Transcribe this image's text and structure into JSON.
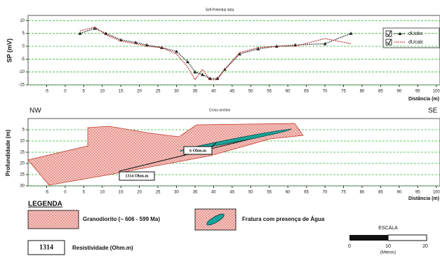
{
  "chart_data": [
    {
      "type": "line",
      "title": "Self-Potential data",
      "y_label": "SP (mV)",
      "x_label": "Distância (m)",
      "x": [
        4,
        8,
        11,
        15,
        19,
        22,
        26,
        30,
        33,
        35,
        37,
        39,
        41,
        43,
        47,
        52,
        57,
        62,
        70,
        77
      ],
      "series": [
        {
          "name": "dUobs",
          "color": "#222222",
          "marker": "triangle",
          "values": [
            5,
            7,
            5,
            2.5,
            1.5,
            0.5,
            -0.5,
            -2,
            -6,
            -10,
            -11,
            -12.5,
            -12.5,
            -9,
            -3,
            -1,
            0,
            0.5,
            1,
            5
          ]
        },
        {
          "name": "dUcalc",
          "color": "#b22222",
          "values": [
            6,
            7.5,
            4.5,
            2,
            1,
            0,
            -0.5,
            -3,
            -8,
            -13,
            -9,
            -13,
            -13,
            -9,
            -2.5,
            -0.5,
            0,
            0,
            3,
            1
          ]
        }
      ],
      "xlim": [
        -10,
        101
      ],
      "xticks": [
        -5,
        0,
        5,
        10,
        15,
        20,
        25,
        30,
        35,
        40,
        45,
        50,
        55,
        60,
        65,
        70,
        75,
        80,
        85,
        90,
        95,
        100
      ],
      "ylim": [
        -15,
        12
      ],
      "yticks": [
        10,
        5,
        0,
        -5,
        -10,
        -15
      ],
      "grid": true
    },
    {
      "type": "section",
      "title": "Cross-section",
      "left_label": "NW",
      "right_label": "SE",
      "y_label": "Profundidade (m)",
      "x_label": "Distância (m)",
      "annotations": [
        "1314 Ohm.m",
        "6 Ohm.m"
      ],
      "xlim": [
        -10,
        101
      ],
      "xticks": [
        -5,
        0,
        5,
        10,
        15,
        20,
        25,
        30,
        35,
        40,
        45,
        50,
        55,
        60,
        65,
        70,
        75,
        80,
        85,
        90,
        95,
        100
      ],
      "ylim": [
        30,
        0
      ],
      "yticks": [
        5,
        10,
        15,
        20,
        25,
        30
      ],
      "grid": true
    }
  ],
  "legend": {
    "title": "LEGENDA",
    "granite": "Granodiorito (~ 606 - 599 Ma)",
    "fracture": "Fratura com presença de Água",
    "resistivity_sample": "1314",
    "resistivity": "Resistividade (Ohm.m)",
    "scale_title": "ESCALA",
    "scale_labels": [
      "0",
      "10",
      "20"
    ],
    "scale_unit": "(Metros)"
  }
}
